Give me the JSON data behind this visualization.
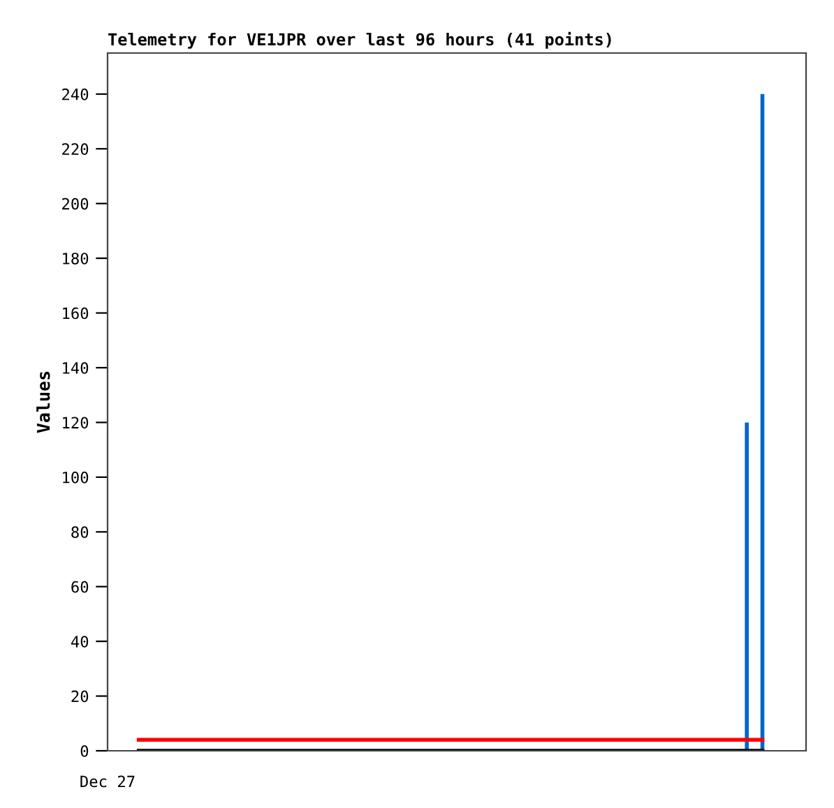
{
  "chart_data": {
    "type": "line",
    "title": "Telemetry for VE1JPR over last 96 hours (41 points)",
    "ylabel": "Values",
    "annotations": [
      "Dec 27"
    ],
    "categories": [
      null,
      null,
      null,
      null,
      null,
      null,
      null,
      null,
      null,
      null,
      null,
      null,
      null,
      null,
      null,
      null,
      null,
      null,
      null,
      null,
      null,
      null,
      null,
      null,
      null,
      null,
      null,
      null,
      null,
      null,
      null,
      null,
      null,
      null,
      null,
      null,
      null,
      null,
      null,
      null,
      null
    ],
    "ylim": [
      0,
      255
    ],
    "yticks": [
      0,
      20,
      40,
      60,
      80,
      100,
      120,
      140,
      160,
      180,
      200,
      220,
      240
    ],
    "series": [
      {
        "color": "#000000",
        "values": [
          0,
          0,
          0,
          0,
          0,
          0,
          0,
          0,
          0,
          0,
          0,
          0,
          0,
          0,
          0,
          0,
          0,
          0,
          0,
          0,
          0,
          0,
          0,
          0,
          0,
          0,
          0,
          0,
          0,
          0,
          0,
          0,
          0,
          0,
          0,
          0,
          0,
          0,
          0,
          0,
          0
        ]
      },
      {
        "color": "#ff0000",
        "values": [
          4,
          4,
          4,
          4,
          4,
          4,
          4,
          4,
          4,
          4,
          4,
          4,
          4,
          4,
          4,
          4,
          4,
          4,
          4,
          4,
          4,
          4,
          4,
          4,
          4,
          4,
          4,
          4,
          4,
          4,
          4,
          4,
          4,
          4,
          4,
          4,
          4,
          4,
          4,
          4,
          4
        ]
      },
      {
        "type": "bar",
        "color": "#0066cc",
        "values": [
          null,
          null,
          null,
          null,
          null,
          null,
          null,
          null,
          null,
          null,
          null,
          null,
          null,
          null,
          null,
          null,
          null,
          null,
          null,
          null,
          null,
          null,
          null,
          null,
          null,
          null,
          null,
          null,
          null,
          null,
          null,
          null,
          null,
          null,
          null,
          null,
          null,
          null,
          null,
          120,
          240
        ]
      }
    ],
    "grid": false,
    "legend": false,
    "marker": "none",
    "line_style": "solid"
  }
}
